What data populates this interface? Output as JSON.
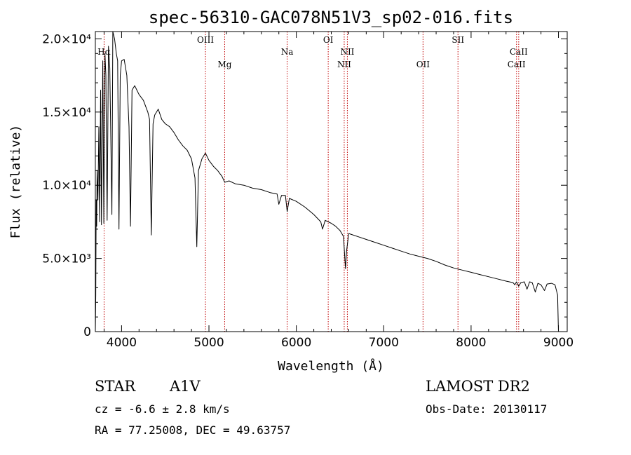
{
  "chart_data": {
    "type": "line",
    "title": "spec-56310-GAC078N51V3_sp02-016.fits",
    "xlabel": "Wavelength (Å)",
    "ylabel": "Flux (relative)",
    "xlim": [
      3700,
      9100
    ],
    "ylim": [
      0,
      20500
    ],
    "x_ticks": [
      4000,
      5000,
      6000,
      7000,
      8000,
      9000
    ],
    "y_ticks": [
      {
        "value": 0,
        "label": "0"
      },
      {
        "value": 5000,
        "label": "5.0×10³"
      },
      {
        "value": 10000,
        "label": "1.0×10⁴"
      },
      {
        "value": 15000,
        "label": "1.5×10⁴"
      },
      {
        "value": 20000,
        "label": "2.0×10⁴"
      }
    ],
    "grid": false,
    "spectral_lines": [
      {
        "label": "Hα",
        "x": 3800,
        "label_row": "middle"
      },
      {
        "label": "OIII",
        "x": 4960,
        "label_row": "top"
      },
      {
        "label": "Mg",
        "x": 5180,
        "label_row": "bottom"
      },
      {
        "label": "Na",
        "x": 5895,
        "label_row": "middle"
      },
      {
        "label": "OI",
        "x": 6365,
        "label_row": "top"
      },
      {
        "label": "NII",
        "x": 6548,
        "label_row": "bottom"
      },
      {
        "label": "NII",
        "x": 6584,
        "label_row": "middle"
      },
      {
        "label": "OII",
        "x": 7450,
        "label_row": "bottom"
      },
      {
        "label": "SII",
        "x": 7850,
        "label_row": "top"
      },
      {
        "label": "CaII",
        "x": 8520,
        "label_row": "bottom"
      },
      {
        "label": "CaII",
        "x": 8545,
        "label_row": "middle"
      }
    ],
    "series": [
      {
        "color": "#000000",
        "points": [
          [
            3700,
            0
          ],
          [
            3705,
            2500
          ],
          [
            3710,
            9000
          ],
          [
            3715,
            7200
          ],
          [
            3720,
            11000
          ],
          [
            3730,
            9000
          ],
          [
            3740,
            14000
          ],
          [
            3750,
            7500
          ],
          [
            3760,
            16500
          ],
          [
            3770,
            7300
          ],
          [
            3785,
            18500
          ],
          [
            3797,
            7400
          ],
          [
            3810,
            19000
          ],
          [
            3820,
            17500
          ],
          [
            3835,
            7600
          ],
          [
            3850,
            19500
          ],
          [
            3865,
            18000
          ],
          [
            3889,
            8000
          ],
          [
            3900,
            20500
          ],
          [
            3920,
            20000
          ],
          [
            3940,
            19000
          ],
          [
            3955,
            18500
          ],
          [
            3970,
            7000
          ],
          [
            3985,
            17500
          ],
          [
            4000,
            18500
          ],
          [
            4030,
            18600
          ],
          [
            4060,
            17500
          ],
          [
            4085,
            14000
          ],
          [
            4102,
            7200
          ],
          [
            4120,
            16500
          ],
          [
            4150,
            16800
          ],
          [
            4200,
            16200
          ],
          [
            4250,
            15800
          ],
          [
            4300,
            15000
          ],
          [
            4320,
            14500
          ],
          [
            4340,
            6600
          ],
          [
            4360,
            14200
          ],
          [
            4380,
            14800
          ],
          [
            4420,
            15200
          ],
          [
            4460,
            14500
          ],
          [
            4500,
            14200
          ],
          [
            4550,
            14000
          ],
          [
            4600,
            13600
          ],
          [
            4650,
            13100
          ],
          [
            4700,
            12700
          ],
          [
            4750,
            12400
          ],
          [
            4800,
            11800
          ],
          [
            4840,
            10500
          ],
          [
            4861,
            5800
          ],
          [
            4880,
            11000
          ],
          [
            4920,
            11800
          ],
          [
            4960,
            12200
          ],
          [
            5000,
            11700
          ],
          [
            5050,
            11300
          ],
          [
            5100,
            11000
          ],
          [
            5150,
            10600
          ],
          [
            5180,
            10200
          ],
          [
            5230,
            10300
          ],
          [
            5300,
            10100
          ],
          [
            5400,
            10000
          ],
          [
            5500,
            9800
          ],
          [
            5600,
            9700
          ],
          [
            5700,
            9500
          ],
          [
            5780,
            9400
          ],
          [
            5800,
            8700
          ],
          [
            5830,
            9300
          ],
          [
            5875,
            9300
          ],
          [
            5895,
            8200
          ],
          [
            5920,
            9100
          ],
          [
            6000,
            8900
          ],
          [
            6100,
            8500
          ],
          [
            6200,
            8000
          ],
          [
            6280,
            7500
          ],
          [
            6300,
            7000
          ],
          [
            6330,
            7600
          ],
          [
            6400,
            7400
          ],
          [
            6450,
            7200
          ],
          [
            6500,
            6900
          ],
          [
            6540,
            6500
          ],
          [
            6563,
            4300
          ],
          [
            6575,
            5500
          ],
          [
            6600,
            6700
          ],
          [
            6700,
            6500
          ],
          [
            6800,
            6300
          ],
          [
            6900,
            6100
          ],
          [
            7000,
            5900
          ],
          [
            7100,
            5700
          ],
          [
            7200,
            5500
          ],
          [
            7300,
            5300
          ],
          [
            7400,
            5150
          ],
          [
            7500,
            5000
          ],
          [
            7600,
            4800
          ],
          [
            7700,
            4550
          ],
          [
            7800,
            4350
          ],
          [
            7900,
            4200
          ],
          [
            8000,
            4050
          ],
          [
            8100,
            3900
          ],
          [
            8200,
            3750
          ],
          [
            8300,
            3600
          ],
          [
            8400,
            3450
          ],
          [
            8480,
            3350
          ],
          [
            8500,
            3200
          ],
          [
            8520,
            3400
          ],
          [
            8545,
            3100
          ],
          [
            8570,
            3350
          ],
          [
            8610,
            3400
          ],
          [
            8640,
            2900
          ],
          [
            8670,
            3400
          ],
          [
            8700,
            3350
          ],
          [
            8735,
            2700
          ],
          [
            8765,
            3300
          ],
          [
            8800,
            3200
          ],
          [
            8840,
            2800
          ],
          [
            8870,
            3250
          ],
          [
            8920,
            3300
          ],
          [
            8960,
            3200
          ],
          [
            8990,
            2500
          ],
          [
            9000,
            0
          ]
        ]
      }
    ]
  },
  "info": {
    "object_type": "STAR",
    "subclass": "A1V",
    "survey": "LAMOST DR2",
    "cz": "cz = -6.6 ± 2.8 km/s",
    "obs_date": "Obs-Date: 20130117",
    "coords": "RA =  77.25008, DEC =  49.63757"
  }
}
